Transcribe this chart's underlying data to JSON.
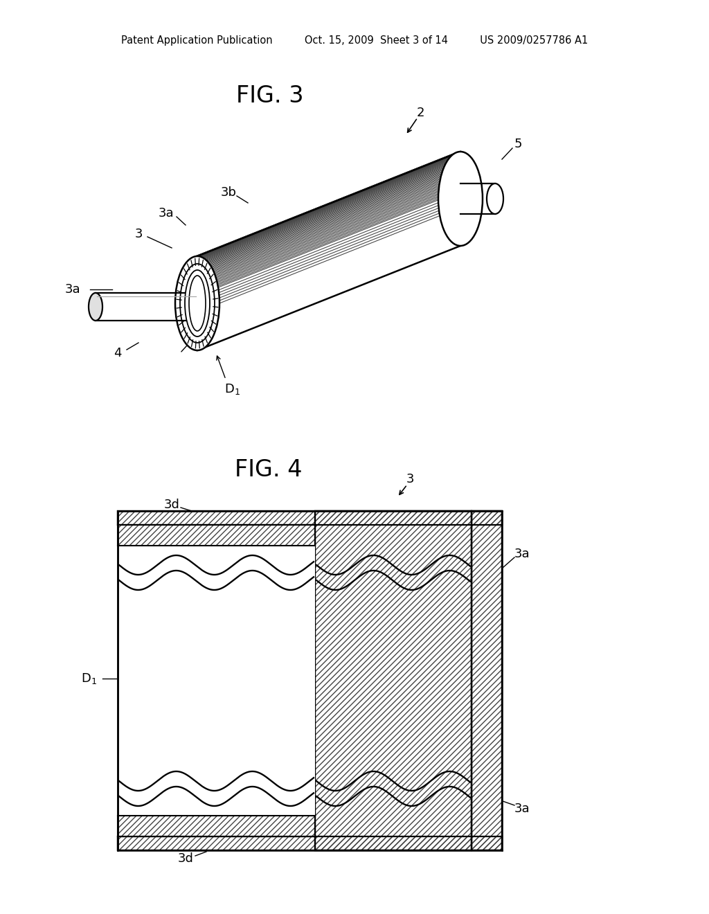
{
  "bg_color": "#ffffff",
  "header_text": "Patent Application Publication     Oct. 15, 2009  Sheet 3 of 14     US 2009/0257786 A1",
  "fig3_title": "FIG. 3",
  "fig4_title": "FIG. 4",
  "line_color": "#000000",
  "gray_color": "#888888"
}
